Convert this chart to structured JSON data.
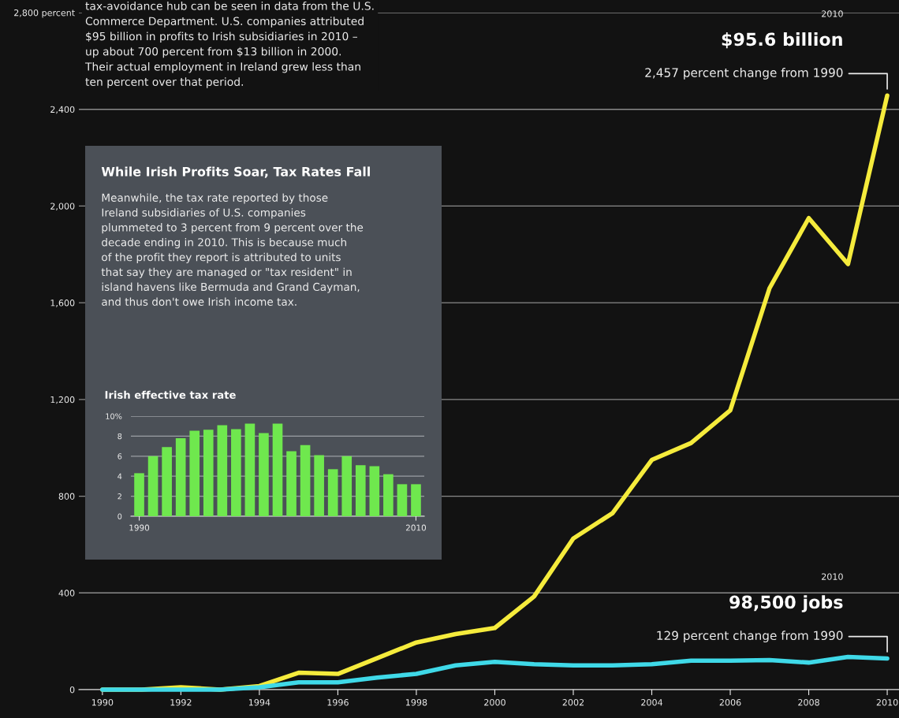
{
  "chart_data": [
    {
      "type": "line",
      "x": [
        1990,
        1991,
        1992,
        1993,
        1994,
        1995,
        1996,
        1997,
        1998,
        1999,
        2000,
        2001,
        2002,
        2003,
        2004,
        2005,
        2006,
        2007,
        2008,
        2009,
        2010
      ],
      "series": [
        {
          "color": "#f5eb3c",
          "values": [
            0,
            0,
            10,
            0,
            15,
            70,
            65,
            130,
            195,
            230,
            255,
            385,
            625,
            730,
            950,
            1020,
            1155,
            1660,
            1950,
            1760,
            2457
          ]
        },
        {
          "color": "#3fd9e8",
          "values": [
            0,
            0,
            0,
            0,
            10,
            30,
            30,
            50,
            65,
            100,
            115,
            105,
            100,
            100,
            105,
            120,
            120,
            122,
            112,
            135,
            129
          ]
        }
      ],
      "xlim": [
        1989.4,
        2010.3
      ],
      "xticks": [
        1990,
        1992,
        1994,
        1996,
        1998,
        2000,
        2002,
        2004,
        2006,
        2008,
        2010
      ],
      "ylim": [
        0,
        2800
      ],
      "yticks": [
        0,
        400,
        {
          "value": 800,
          "label": "800"
        },
        {
          "value": 1200,
          "label": "1,200"
        },
        {
          "value": 1600,
          "label": "1,600"
        },
        {
          "value": 2000,
          "label": "2,000"
        },
        {
          "value": 2400,
          "label": "2,400"
        },
        {
          "value": 2800,
          "label": "2,800 percent"
        }
      ],
      "grid": "y",
      "annotations": [
        "tax-avoidance hub can be seen in data from the U.S.\nCommerce Department. U.S. companies attributed\n$95 billion in profits to Irish subsidiaries in 2010 –\nup about 700 percent from $13 billion in 2000.\nTheir actual employment in Ireland grew less than\nten percent over that period.",
        "2010",
        "$95.6 billion",
        {
          "text": "2,457 percent change from 1990",
          "x": 2010,
          "y": 2457
        },
        "2010",
        "98,500 jobs",
        {
          "text": "129 percent change from 1990",
          "x": 2010,
          "y": 129
        }
      ]
    },
    {
      "type": "other",
      "title": "While Irish Profits Soar, Tax Rates Fall",
      "annotations": [
        "Meanwhile, the tax rate reported by those\nIreland subsidiaries of U.S. companies\nplummeted to 3 percent from 9 percent over the\ndecade ending in 2010. This is because much\nof the profit they report is attributed to units\nthat say they are managed or \"tax resident\" in\nisland havens like Bermuda and Grand Cayman,\nand thus don't owe Irish income tax."
      ]
    },
    {
      "type": "bar",
      "title": "Irish effective tax rate",
      "categories": [
        "1990",
        null,
        null,
        null,
        null,
        null,
        null,
        null,
        null,
        null,
        null,
        null,
        null,
        null,
        null,
        null,
        null,
        null,
        null,
        null,
        "2010"
      ],
      "values": [
        4.3,
        6.0,
        6.9,
        7.8,
        8.55,
        8.65,
        9.1,
        8.7,
        9.25,
        8.3,
        9.25,
        6.5,
        7.1,
        6.1,
        4.7,
        6.0,
        5.1,
        5.0,
        4.2,
        3.2,
        3.2
      ],
      "color": "#6fe84e",
      "ylim": [
        0,
        10
      ],
      "yticks": [
        0,
        2,
        4,
        6,
        8,
        {
          "value": 10,
          "label": "10%"
        }
      ],
      "grid": "y"
    }
  ]
}
